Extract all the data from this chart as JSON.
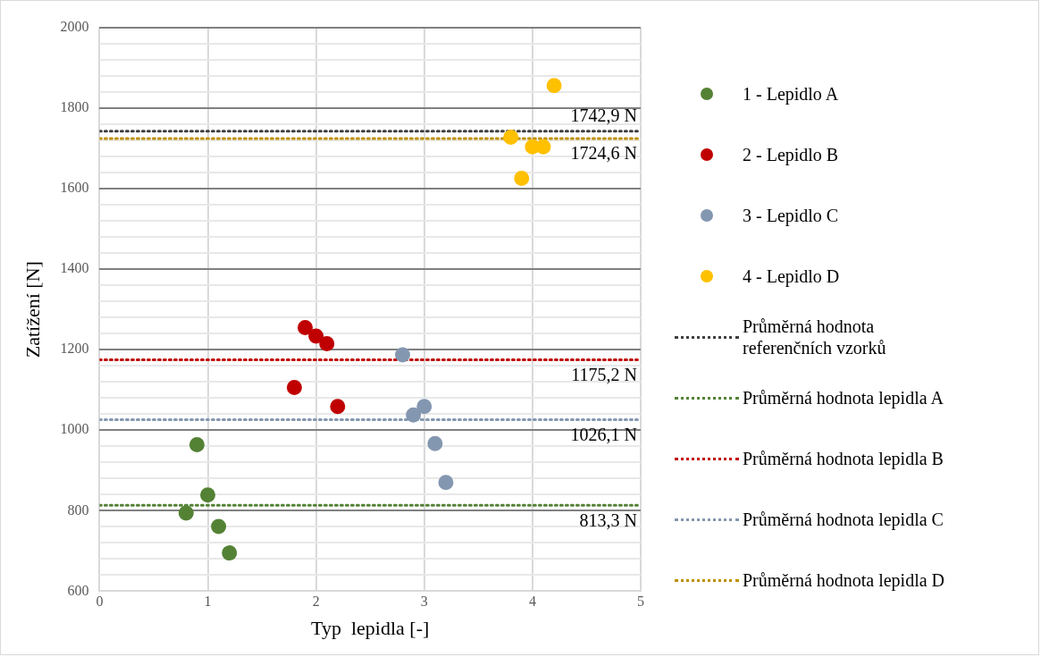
{
  "chart_data": {
    "type": "scatter",
    "xlabel": "Typ  lepidla [-]",
    "ylabel": "Zatížení [N]",
    "xlim": [
      0,
      5
    ],
    "xticks": [
      0,
      1,
      2,
      3,
      4,
      5
    ],
    "ylim": [
      600,
      2000
    ],
    "yticks": [
      600,
      {
        "value": 640,
        "label": null
      },
      {
        "value": 680,
        "label": null
      },
      {
        "value": 720,
        "label": null
      },
      {
        "value": 760,
        "label": null
      },
      800,
      {
        "value": 840,
        "label": null
      },
      {
        "value": 880,
        "label": null
      },
      {
        "value": 920,
        "label": null
      },
      {
        "value": 960,
        "label": null
      },
      1000,
      {
        "value": 1040,
        "label": null
      },
      {
        "value": 1080,
        "label": null
      },
      {
        "value": 1120,
        "label": null
      },
      {
        "value": 1160,
        "label": null
      },
      1200,
      {
        "value": 1240,
        "label": null
      },
      {
        "value": 1280,
        "label": null
      },
      {
        "value": 1320,
        "label": null
      },
      {
        "value": 1360,
        "label": null
      },
      1400,
      {
        "value": 1440,
        "label": null
      },
      {
        "value": 1480,
        "label": null
      },
      {
        "value": 1520,
        "label": null
      },
      {
        "value": 1560,
        "label": null
      },
      1600,
      {
        "value": 1640,
        "label": null
      },
      {
        "value": 1680,
        "label": null
      },
      {
        "value": 1720,
        "label": null
      },
      {
        "value": 1760,
        "label": null
      },
      1800,
      {
        "value": 1840,
        "label": null
      },
      {
        "value": 1880,
        "label": null
      },
      {
        "value": 1920,
        "label": null
      },
      {
        "value": 1960,
        "label": null
      },
      2000
    ],
    "grid": true,
    "legend": "right",
    "marker": "circle",
    "series": [
      {
        "name": "1 - Lepidlo A",
        "color": "#548235",
        "x": [
          0.9,
          1.0,
          0.8,
          1.1,
          1.2
        ],
        "values": [
          964,
          839,
          794,
          761,
          695
        ]
      },
      {
        "name": "2 - Lepidlo B",
        "color": "#c00000",
        "x": [
          1.9,
          2.0,
          2.1,
          1.8,
          2.2
        ],
        "values": [
          1255,
          1234,
          1215,
          1106,
          1059
        ]
      },
      {
        "name": "3 - Lepidlo C",
        "color": "#8497b0",
        "x": [
          2.8,
          3.0,
          2.9,
          3.1,
          3.2
        ],
        "values": [
          1187,
          1059,
          1038,
          967,
          870
        ]
      },
      {
        "name": "4 - Lepidlo D",
        "color": "#ffc000",
        "x": [
          4.2,
          3.8,
          4.0,
          4.1,
          3.9
        ],
        "values": [
          1856,
          1728,
          1704,
          1704,
          1626
        ]
      },
      {
        "name": "Průměrná hodnota referenčních vzorků",
        "type": "line",
        "marker": "none",
        "line_style": "dotted",
        "color": "#404040",
        "x": [
          0,
          5
        ],
        "values": [
          1742.9,
          1742.9
        ]
      },
      {
        "name": "Průměrná hodnota lepidla A",
        "type": "line",
        "marker": "none",
        "line_style": "dotted",
        "color": "#548235",
        "x": [
          0,
          5
        ],
        "values": [
          813.3,
          813.3
        ]
      },
      {
        "name": "Průměrná hodnota lepidla B",
        "type": "line",
        "marker": "none",
        "line_style": "dotted",
        "color": "#c00000",
        "x": [
          0,
          5
        ],
        "values": [
          1175.2,
          1175.2
        ]
      },
      {
        "name": "Průměrná hodnota lepidla C",
        "type": "line",
        "marker": "none",
        "line_style": "dotted",
        "color": "#8497b0",
        "x": [
          0,
          5
        ],
        "values": [
          1026.1,
          1026.1
        ]
      },
      {
        "name": "Průměrná hodnota lepidla D",
        "type": "line",
        "marker": "none",
        "line_style": "dotted",
        "color": "#bf9000",
        "x": [
          0,
          5
        ],
        "values": [
          1724.6,
          1724.6
        ]
      }
    ],
    "annotations": [
      {
        "text": "1742,9 N",
        "y": 1742.9
      },
      {
        "text": "1724,6 N",
        "y": 1724.6
      },
      {
        "text": "1175,2 N",
        "y": 1175.2
      },
      {
        "text": "1026,1 N",
        "y": 1026.1
      },
      {
        "text": "813,3 N",
        "y": 813.3
      }
    ]
  }
}
